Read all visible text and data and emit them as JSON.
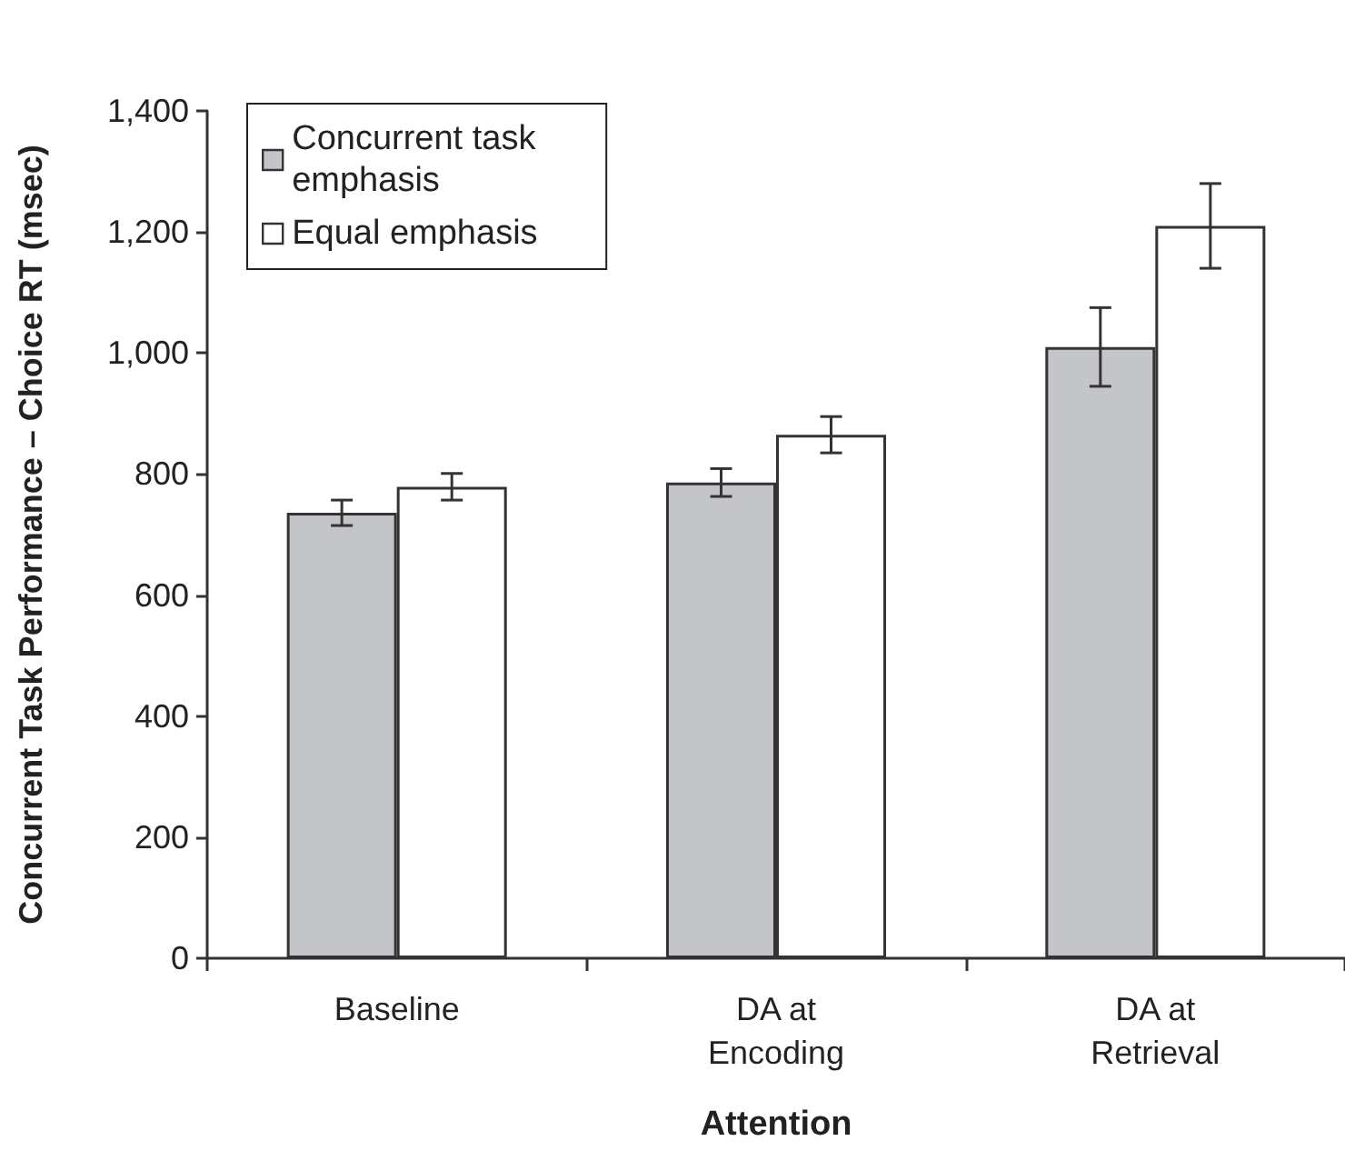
{
  "chart_data": {
    "type": "bar",
    "xlabel": "Attention",
    "ylabel": "Concurrent Task Performance – Choice RT (msec)",
    "categories": [
      "Baseline",
      "DA at\nEncoding",
      "DA at\nRetrieval"
    ],
    "series": [
      {
        "name": "Concurrent task emphasis",
        "color": "#c4c5c8",
        "values": [
          736,
          786,
          1010
        ],
        "errors": [
          21,
          23,
          65
        ]
      },
      {
        "name": "Equal emphasis",
        "color": "#ffffff",
        "values": [
          779,
          865,
          1210
        ],
        "errors": [
          22,
          30,
          70
        ]
      }
    ],
    "ylim": [
      0,
      1400
    ],
    "yticks": [
      0,
      200,
      400,
      600,
      800,
      {
        "value": 1000,
        "label": "1,000"
      },
      {
        "value": 1200,
        "label": "1,200"
      },
      {
        "value": 1400,
        "label": "1,400"
      }
    ],
    "grid": false,
    "legend": "top left"
  }
}
